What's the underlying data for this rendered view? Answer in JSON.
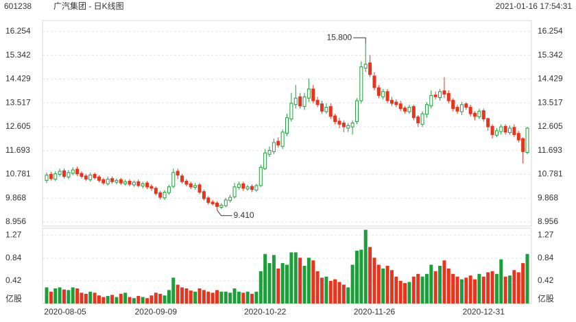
{
  "header": {
    "code": "601238",
    "name": "广汽集团 - 日K线图",
    "time": "2021-01-16 17:54:31"
  },
  "chart_data": {
    "type": "candlestick",
    "up_color": "#1e9e3a",
    "down_color": "#e8341c",
    "grid": true,
    "max_label": "15.800",
    "min_label": "9.410",
    "volume_unit": "亿股",
    "ylim": [
      8.8,
      16.67
    ],
    "yticks": [
      16.254,
      15.342,
      14.429,
      13.517,
      12.605,
      11.693,
      10.781,
      9.868,
      8.956
    ],
    "volume_ylim": [
      0,
      1.4
    ],
    "volume_ticks": [
      1.27,
      0.84,
      0.42
    ],
    "categories": [
      "2020-08-05",
      null,
      null,
      null,
      null,
      null,
      null,
      null,
      null,
      null,
      null,
      null,
      null,
      null,
      null,
      null,
      null,
      null,
      null,
      null,
      null,
      null,
      null,
      null,
      null,
      "2020-09-09",
      null,
      null,
      null,
      null,
      null,
      null,
      null,
      null,
      null,
      null,
      null,
      null,
      null,
      null,
      null,
      null,
      null,
      null,
      null,
      null,
      null,
      null,
      null,
      null,
      "2020-10-22",
      null,
      null,
      null,
      null,
      null,
      null,
      null,
      null,
      null,
      null,
      null,
      null,
      null,
      null,
      null,
      null,
      null,
      null,
      null,
      null,
      null,
      null,
      null,
      null,
      "2020-11-26",
      null,
      null,
      null,
      null,
      null,
      null,
      null,
      null,
      null,
      null,
      null,
      null,
      null,
      null,
      null,
      null,
      null,
      null,
      null,
      null,
      null,
      null,
      null,
      null,
      "2020-12-31",
      null,
      null,
      null,
      null,
      null,
      null,
      null,
      null,
      null,
      null
    ],
    "open": [
      10.55,
      10.78,
      10.6,
      10.78,
      10.92,
      10.68,
      10.82,
      10.98,
      10.82,
      10.72,
      10.58,
      10.78,
      10.68,
      10.58,
      10.42,
      10.62,
      10.48,
      10.58,
      10.42,
      10.52,
      10.38,
      10.5,
      10.33,
      10.45,
      10.32,
      10.25,
      10.08,
      9.88,
      10.08,
      10.32,
      10.9,
      10.72,
      10.52,
      10.42,
      10.28,
      10.38,
      10.12,
      9.88,
      9.72,
      9.68,
      9.52,
      9.58,
      9.78,
      9.92,
      10.28,
      10.42,
      10.22,
      10.32,
      10.18,
      10.35,
      11.0,
      11.55,
      11.65,
      12.05,
      11.85,
      12.35,
      12.9,
      13.45,
      13.75,
      13.38,
      13.7,
      14.05,
      13.62,
      13.48,
      13.18,
      13.38,
      13.02,
      12.82,
      12.75,
      12.55,
      12.6,
      12.8,
      13.6,
      14.85,
      15.05,
      14.55,
      14.1,
      13.75,
      13.95,
      13.62,
      13.55,
      13.48,
      13.32,
      13.18,
      13.38,
      12.98,
      12.7,
      13.08,
      13.4,
      13.82,
      13.72,
      13.98,
      13.88,
      13.62,
      13.35,
      13.18,
      13.48,
      13.35,
      13.12,
      12.98,
      13.22,
      12.92,
      12.62,
      12.28,
      12.42,
      12.62,
      12.38,
      12.58,
      12.35,
      12.15,
      11.62
    ],
    "high": [
      10.85,
      10.88,
      10.9,
      11.0,
      11.0,
      10.95,
      11.05,
      11.08,
      10.9,
      10.8,
      10.85,
      10.85,
      10.75,
      10.65,
      10.7,
      10.7,
      10.62,
      10.65,
      10.58,
      10.6,
      10.55,
      10.58,
      10.5,
      10.52,
      10.4,
      10.32,
      10.15,
      10.18,
      10.38,
      11.0,
      11.0,
      10.8,
      10.6,
      10.5,
      10.45,
      10.45,
      10.2,
      9.95,
      9.8,
      9.75,
      9.68,
      9.88,
      10.0,
      10.45,
      10.5,
      10.5,
      10.38,
      10.4,
      10.42,
      11.15,
      11.75,
      11.85,
      12.15,
      12.2,
      12.5,
      13.1,
      13.9,
      14.2,
      13.9,
      13.9,
      14.45,
      14.2,
      13.75,
      13.6,
      13.5,
      13.5,
      13.1,
      12.95,
      12.85,
      12.75,
      12.85,
      13.7,
      15.1,
      15.8,
      15.35,
      14.7,
      14.2,
      14.05,
      14.05,
      13.75,
      13.65,
      13.6,
      13.4,
      13.45,
      13.45,
      13.05,
      13.2,
      13.55,
      14.0,
      13.95,
      14.05,
      14.5,
      14.0,
      13.7,
      13.45,
      13.55,
      13.55,
      13.45,
      13.2,
      13.3,
      13.3,
      12.95,
      12.7,
      12.55,
      12.7,
      12.7,
      12.65,
      12.7,
      12.45,
      12.2,
      12.6
    ],
    "low": [
      10.45,
      10.55,
      10.52,
      10.7,
      10.62,
      10.6,
      10.75,
      10.72,
      10.62,
      10.52,
      10.5,
      10.58,
      10.48,
      10.38,
      10.35,
      10.42,
      10.4,
      10.38,
      10.35,
      10.32,
      10.3,
      10.28,
      10.25,
      10.22,
      10.15,
      9.98,
      9.82,
      9.8,
      10.0,
      10.25,
      10.6,
      10.42,
      10.32,
      10.22,
      10.2,
      10.02,
      9.78,
      9.62,
      9.58,
      9.41,
      9.45,
      9.52,
      9.7,
      9.85,
      10.2,
      10.15,
      10.15,
      10.1,
      10.1,
      10.3,
      10.95,
      11.45,
      11.55,
      11.8,
      11.75,
      12.25,
      12.8,
      13.3,
      13.3,
      13.25,
      13.55,
      13.5,
      13.35,
      13.1,
      13.1,
      12.9,
      12.7,
      12.55,
      12.4,
      12.4,
      12.3,
      12.7,
      13.5,
      14.7,
      14.5,
      14.0,
      13.7,
      13.65,
      13.5,
      13.4,
      13.35,
      13.2,
      13.1,
      13.1,
      12.85,
      12.6,
      12.6,
      12.95,
      13.3,
      13.65,
      13.6,
      13.7,
      13.5,
      13.2,
      13.1,
      13.05,
      13.25,
      13.0,
      12.85,
      12.9,
      12.8,
      12.45,
      12.15,
      12.2,
      12.3,
      12.3,
      12.3,
      12.2,
      12.0,
      11.2,
      11.55
    ],
    "close": [
      10.75,
      10.62,
      10.8,
      10.9,
      10.7,
      10.85,
      10.95,
      10.8,
      10.7,
      10.6,
      10.75,
      10.65,
      10.55,
      10.45,
      10.6,
      10.5,
      10.55,
      10.45,
      10.5,
      10.4,
      10.48,
      10.35,
      10.42,
      10.3,
      10.25,
      10.05,
      9.9,
      10.1,
      10.3,
      10.85,
      10.75,
      10.5,
      10.4,
      10.3,
      10.35,
      10.1,
      9.85,
      9.7,
      9.65,
      9.55,
      9.6,
      9.8,
      9.9,
      10.3,
      10.4,
      10.25,
      10.3,
      10.2,
      10.35,
      11.05,
      11.6,
      11.7,
      12.0,
      11.9,
      12.4,
      12.95,
      13.5,
      13.7,
      13.4,
      13.75,
      14.05,
      13.6,
      13.45,
      13.2,
      13.35,
      13.0,
      12.8,
      12.7,
      12.6,
      12.65,
      12.75,
      13.6,
      14.9,
      15.0,
      14.6,
      14.1,
      13.8,
      13.95,
      13.6,
      13.5,
      13.45,
      13.3,
      13.2,
      13.35,
      12.95,
      12.75,
      13.1,
      13.45,
      13.8,
      13.75,
      13.95,
      13.85,
      13.6,
      13.3,
      13.2,
      13.45,
      13.35,
      13.1,
      13.0,
      13.2,
      12.9,
      12.6,
      12.3,
      12.45,
      12.6,
      12.4,
      12.55,
      12.3,
      12.1,
      11.65,
      12.55
    ],
    "volume": [
      0.3,
      0.22,
      0.28,
      0.3,
      0.26,
      0.25,
      0.3,
      0.28,
      0.2,
      0.18,
      0.22,
      0.2,
      0.15,
      0.12,
      0.14,
      0.16,
      0.12,
      0.18,
      0.2,
      0.12,
      0.1,
      0.14,
      0.12,
      0.1,
      0.15,
      0.2,
      0.18,
      0.15,
      0.25,
      0.48,
      0.35,
      0.3,
      0.28,
      0.24,
      0.22,
      0.28,
      0.25,
      0.22,
      0.2,
      0.25,
      0.22,
      0.22,
      0.2,
      0.28,
      0.22,
      0.2,
      0.22,
      0.18,
      0.22,
      0.6,
      0.92,
      0.75,
      0.9,
      0.65,
      0.75,
      0.72,
      0.95,
      0.95,
      0.85,
      0.7,
      0.85,
      0.8,
      0.6,
      0.48,
      0.5,
      0.42,
      0.45,
      0.4,
      0.35,
      0.3,
      0.72,
      0.98,
      1.0,
      1.37,
      1.05,
      0.85,
      0.72,
      0.65,
      0.7,
      0.62,
      0.5,
      0.42,
      0.38,
      0.4,
      0.5,
      0.55,
      0.5,
      0.55,
      0.72,
      0.6,
      0.7,
      0.8,
      0.65,
      0.55,
      0.5,
      0.45,
      0.48,
      0.52,
      0.45,
      0.55,
      0.5,
      0.58,
      0.6,
      0.55,
      0.82,
      0.5,
      0.52,
      0.62,
      0.58,
      0.75,
      0.92
    ]
  }
}
